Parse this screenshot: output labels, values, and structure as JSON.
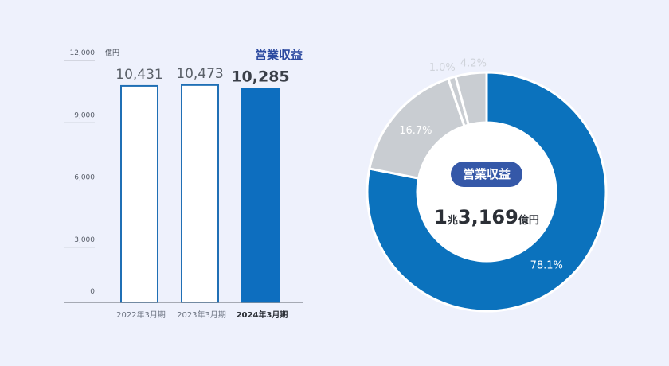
{
  "chart_data": [
    {
      "type": "bar",
      "title": "営業収益",
      "unit": "億円",
      "categories": [
        "2022年3月期",
        "2023年3月期",
        "2024年3月期"
      ],
      "values": [
        10431,
        10473,
        10285
      ],
      "value_labels": [
        "10,431",
        "10,473",
        "10,285"
      ],
      "highlight_index": 2,
      "ylim": [
        0,
        12000
      ],
      "yticks": [
        0,
        3000,
        6000,
        9000,
        12000
      ],
      "ytick_labels": [
        "0",
        "3,000",
        "6,000",
        "9,000",
        "12,000"
      ],
      "colors": {
        "highlight": "#0d6ebf",
        "bar_fill": "#ffffff",
        "bar_stroke": "#1f6fb5",
        "grid": "#b8bcc4"
      }
    },
    {
      "type": "pie",
      "donut": true,
      "values": [
        78.1,
        16.7,
        1.0,
        4.2
      ],
      "labels": [
        "78.1%",
        "16.7%",
        "1.0%",
        "4.2%"
      ],
      "colors": [
        "#0b72bd",
        "#c9cdd2",
        "#c9cdd2",
        "#c9cdd2"
      ],
      "label_colors": [
        "#ffffff",
        "#ffffff",
        "#cfd3da",
        "#cfd3da"
      ],
      "center": {
        "badge": "営業収益",
        "total_prefix": "1",
        "total_unit_mid": "兆",
        "total_main": "3,169",
        "total_unit": "億円"
      },
      "badge_color": "#3558a8"
    }
  ]
}
